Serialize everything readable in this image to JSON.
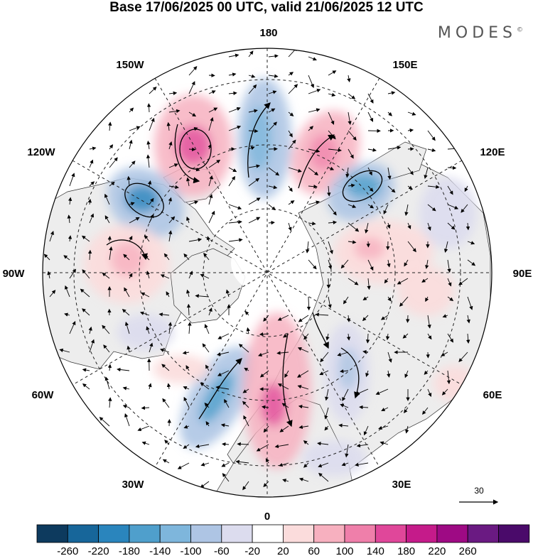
{
  "header": {
    "title": "Base 17/06/2025 00 UTC, valid 21/06/2025 12 UTC",
    "brand": "MODES",
    "brand_mark": "©"
  },
  "map": {
    "projection": "north polar stereographic",
    "longitude_labels": {
      "n": "180",
      "s": "0",
      "e": "90E",
      "w": "90W",
      "nw1": "150W",
      "nw2": "120W",
      "ne1": "150E",
      "ne2": "120E",
      "sw1": "60W",
      "sw2": "30W",
      "se1": "60E",
      "se2": "30E"
    },
    "vector_reference": {
      "value": "30"
    },
    "colors": {
      "land": "#ededed",
      "ocean": "#ffffff",
      "grid": "#222222"
    }
  },
  "colorbar": {
    "ticks": [
      "-260",
      "-220",
      "-180",
      "-140",
      "-100",
      "-60",
      "-20",
      "20",
      "60",
      "100",
      "140",
      "180",
      "220",
      "260"
    ],
    "colors": [
      "#0d3a5e",
      "#17669a",
      "#2a85bd",
      "#4f9fcc",
      "#7eb6dc",
      "#aec5e4",
      "#dcdcee",
      "#ffffff",
      "#fbdcdc",
      "#f7b0bf",
      "#ef7faa",
      "#e0479a",
      "#c51b8a",
      "#9e0a84",
      "#6a1a82",
      "#4a0a6a"
    ]
  }
}
